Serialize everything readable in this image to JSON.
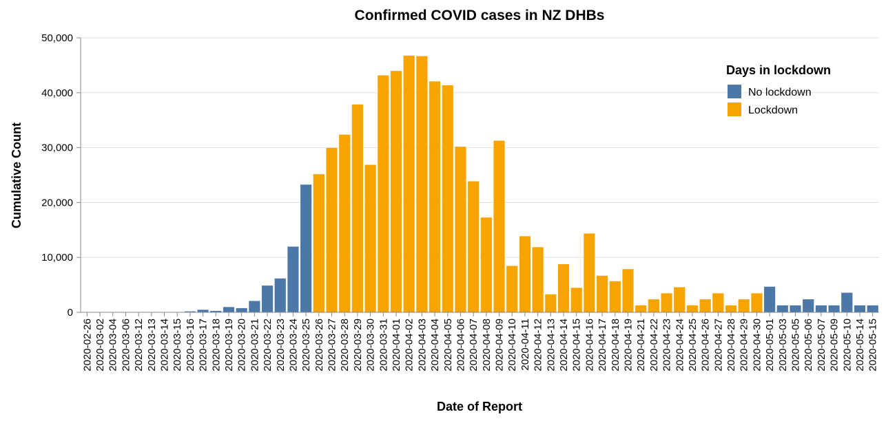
{
  "chart_data": {
    "type": "bar",
    "title": "Confirmed COVID cases in NZ DHBs",
    "xlabel": "Date of Report",
    "ylabel": "Cumulative Count",
    "ylim": [
      0,
      50000
    ],
    "yticks": [
      0,
      10000,
      20000,
      30000,
      40000,
      50000
    ],
    "ytick_labels": [
      "0",
      "10,000",
      "20,000",
      "30,000",
      "40,000",
      "50,000"
    ],
    "grid": true,
    "legend": {
      "title": "Days in lockdown",
      "placement": "top-right",
      "entries": [
        {
          "label": "No lockdown",
          "color": "#4c78a8"
        },
        {
          "label": "Lockdown",
          "color": "#f6a400"
        }
      ]
    },
    "categories": [
      "2020-02-26",
      "2020-03-02",
      "2020-03-04",
      "2020-03-06",
      "2020-03-12",
      "2020-03-13",
      "2020-03-14",
      "2020-03-15",
      "2020-03-16",
      "2020-03-17",
      "2020-03-18",
      "2020-03-19",
      "2020-03-20",
      "2020-03-21",
      "2020-03-22",
      "2020-03-23",
      "2020-03-24",
      "2020-03-25",
      "2020-03-26",
      "2020-03-27",
      "2020-03-28",
      "2020-03-29",
      "2020-03-30",
      "2020-03-31",
      "2020-04-01",
      "2020-04-02",
      "2020-04-03",
      "2020-04-04",
      "2020-04-05",
      "2020-04-06",
      "2020-04-07",
      "2020-04-08",
      "2020-04-09",
      "2020-04-10",
      "2020-04-11",
      "2020-04-12",
      "2020-04-13",
      "2020-04-14",
      "2020-04-15",
      "2020-04-16",
      "2020-04-17",
      "2020-04-18",
      "2020-04-19",
      "2020-04-21",
      "2020-04-22",
      "2020-04-23",
      "2020-04-24",
      "2020-04-25",
      "2020-04-26",
      "2020-04-27",
      "2020-04-28",
      "2020-04-29",
      "2020-04-30",
      "2020-05-01",
      "2020-05-03",
      "2020-05-05",
      "2020-05-06",
      "2020-05-07",
      "2020-05-09",
      "2020-05-10",
      "2020-05-14",
      "2020-05-15"
    ],
    "values": [
      0,
      0,
      0,
      0,
      0,
      0,
      0,
      0,
      200,
      500,
      300,
      1000,
      800,
      2100,
      4900,
      6200,
      12000,
      23300,
      25200,
      30000,
      32400,
      37900,
      26900,
      43200,
      44000,
      46800,
      46700,
      42100,
      41400,
      30200,
      23900,
      17300,
      31300,
      8500,
      13900,
      11900,
      3300,
      8800,
      4500,
      14400,
      6700,
      5700,
      7900,
      1300,
      2400,
      3500,
      4600,
      1300,
      2400,
      3500,
      1300,
      2400,
      3500,
      4700,
      1300,
      1300,
      2400,
      1300,
      1300,
      3600,
      1300,
      1300
    ],
    "series_group": [
      "No lockdown",
      "No lockdown",
      "No lockdown",
      "No lockdown",
      "No lockdown",
      "No lockdown",
      "No lockdown",
      "No lockdown",
      "No lockdown",
      "No lockdown",
      "No lockdown",
      "No lockdown",
      "No lockdown",
      "No lockdown",
      "No lockdown",
      "No lockdown",
      "No lockdown",
      "No lockdown",
      "Lockdown",
      "Lockdown",
      "Lockdown",
      "Lockdown",
      "Lockdown",
      "Lockdown",
      "Lockdown",
      "Lockdown",
      "Lockdown",
      "Lockdown",
      "Lockdown",
      "Lockdown",
      "Lockdown",
      "Lockdown",
      "Lockdown",
      "Lockdown",
      "Lockdown",
      "Lockdown",
      "Lockdown",
      "Lockdown",
      "Lockdown",
      "Lockdown",
      "Lockdown",
      "Lockdown",
      "Lockdown",
      "Lockdown",
      "Lockdown",
      "Lockdown",
      "Lockdown",
      "Lockdown",
      "Lockdown",
      "Lockdown",
      "Lockdown",
      "Lockdown",
      "Lockdown",
      "No lockdown",
      "No lockdown",
      "No lockdown",
      "No lockdown",
      "No lockdown",
      "No lockdown",
      "No lockdown",
      "No lockdown",
      "No lockdown"
    ]
  }
}
